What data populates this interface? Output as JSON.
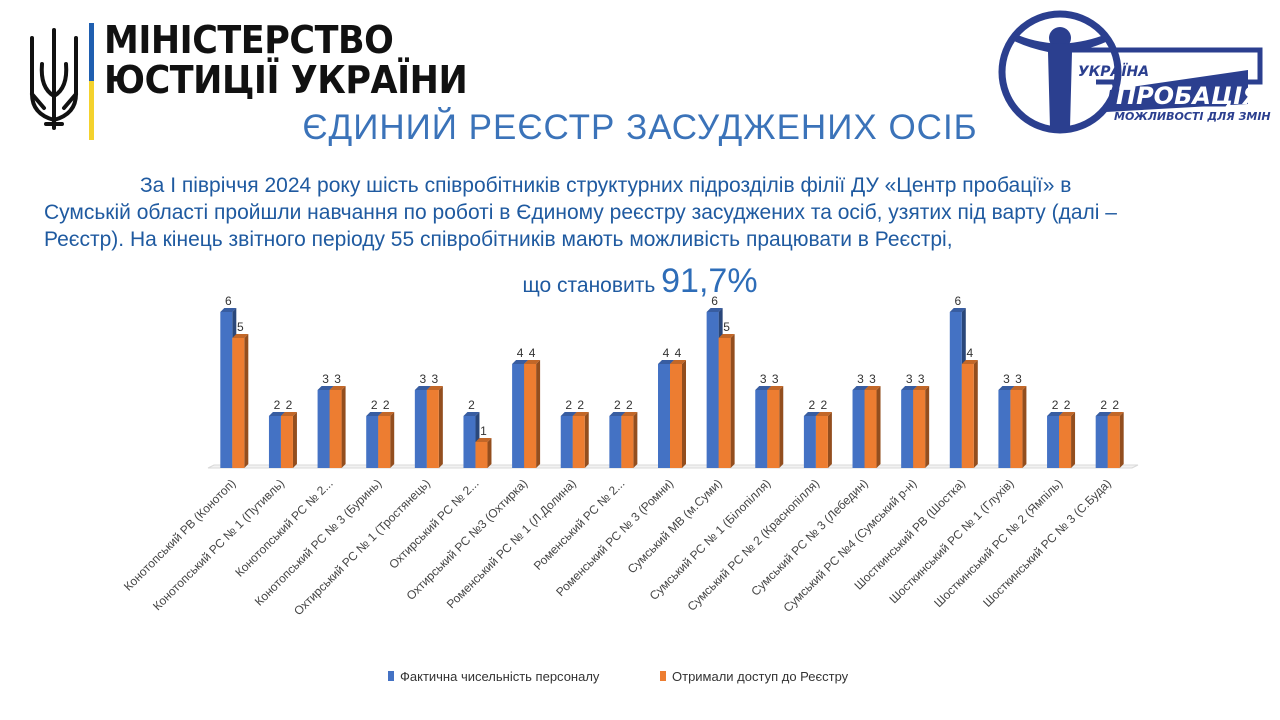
{
  "logo_left": {
    "line1": "МІНІСТЕРСТВО",
    "line2": "ЮСТИЦІЇ УКРАЇНИ"
  },
  "logo_right": {
    "word1": "УКРАЇНА",
    "word2": "ПРОБАЦІЯ",
    "slogan": "МОЖЛИВОСТІ ДЛЯ ЗМІН",
    "colors": {
      "primary": "#2b3f8f"
    }
  },
  "title": "ЄДИНИЙ РЕЄСТР ЗАСУДЖЕНИХ ОСІБ",
  "body": {
    "line1": "За I півріччя 2024 року шість співробітників структурних підрозділів філії ДУ «Центр пробації» в",
    "line2": "Сумській області пройшли навчання по роботі в Єдиному реєстру засуджених та осіб, узятих під варту (далі –",
    "line3": "Реєстр). На кінець звітного періоду 55 співробітників мають можливість працювати в Реєстрі,",
    "prefix": "що становить",
    "percent": "91,7%"
  },
  "chart_data": {
    "type": "bar",
    "categories": [
      "Конотопський РВ (Конотоп)",
      "Конотопський РС № 1 (Путивль)",
      "Конотопський РС № 2...",
      "Конотопський РС № 3 (Буринь)",
      "Охтирський РС № 1 (Тростянець)",
      "Охтирський РС № 2...",
      "Охтирський РС №3 (Охтирка)",
      "Роменський РС № 1 (Л.Долина)",
      "Роменський РС № 2...",
      "Роменський РС № 3 (Ромни)",
      "Сумський МВ (м.Суми)",
      "Сумський РС № 1 (Білопілля)",
      "Сумський РС № 2 (Краснопілля)",
      "Сумський РС № 3 (Лебедин)",
      "Сумський РС №4 (Сумський р-н)",
      "Шосткинський РВ (Шостка)",
      "Шосткинський РС № 1 (Глухів)",
      "Шосткинський РС № 2 (Ямпіль)",
      "Шосткинський РС № 3 (С.Буда)"
    ],
    "series": [
      {
        "name": "Фактична чисельність персоналу",
        "color": "#4472c4",
        "values": [
          6,
          2,
          3,
          2,
          3,
          2,
          4,
          2,
          2,
          4,
          6,
          3,
          2,
          3,
          3,
          6,
          3,
          2,
          2
        ]
      },
      {
        "name": "Отримали доступ до Реєстру",
        "color": "#ed7d31",
        "values": [
          5,
          2,
          3,
          2,
          3,
          1,
          4,
          2,
          2,
          4,
          5,
          3,
          2,
          3,
          3,
          4,
          3,
          2,
          2
        ]
      }
    ],
    "ylim": [
      0,
      6
    ],
    "grid": false,
    "legend_position": "bottom",
    "data_labels": true
  }
}
